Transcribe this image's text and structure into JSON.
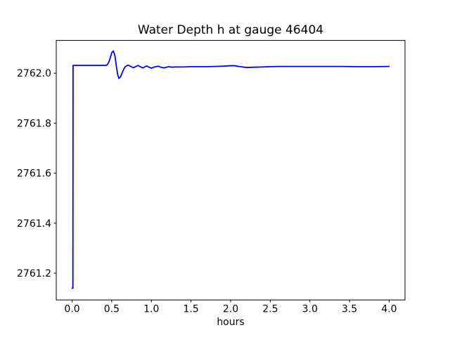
{
  "chart_data": {
    "type": "line",
    "title": "Water Depth h at gauge 46404",
    "xlabel": "hours",
    "ylabel": "",
    "xlim": [
      -0.2,
      4.2
    ],
    "ylim": [
      2761.093,
      2762.131
    ],
    "grid": false,
    "legend_position": "none",
    "x_ticks": [
      0.0,
      0.5,
      1.0,
      1.5,
      2.0,
      2.5,
      3.0,
      3.5,
      4.0
    ],
    "x_tick_labels": [
      "0.0",
      "0.5",
      "1.0",
      "1.5",
      "2.0",
      "2.5",
      "3.0",
      "3.5",
      "4.0"
    ],
    "y_ticks": [
      2761.2,
      2761.4,
      2761.6,
      2761.8,
      2762.0
    ],
    "y_tick_labels": [
      "2761.2",
      "2761.4",
      "2761.6",
      "2761.8",
      "2762.0"
    ],
    "axes_color": "#000000",
    "series": [
      {
        "name": "water-depth-h",
        "color": "#0000ff",
        "line_width": 1.8,
        "x": [
          0.0,
          0.01,
          0.012,
          0.05,
          0.1,
          0.15,
          0.2,
          0.25,
          0.3,
          0.35,
          0.4,
          0.42,
          0.44,
          0.46,
          0.48,
          0.5,
          0.52,
          0.54,
          0.56,
          0.575,
          0.59,
          0.61,
          0.63,
          0.65,
          0.67,
          0.7,
          0.72,
          0.75,
          0.775,
          0.8,
          0.835,
          0.865,
          0.895,
          0.92,
          0.94,
          0.97,
          1.0,
          1.04,
          1.085,
          1.12,
          1.16,
          1.19,
          1.22,
          1.26,
          1.3,
          1.4,
          1.5,
          1.6,
          1.7,
          1.8,
          1.9,
          1.95,
          2.0,
          2.05,
          2.1,
          2.2,
          2.3,
          2.4,
          2.5,
          2.6,
          2.8,
          3.0,
          3.2,
          3.4,
          3.6,
          3.8,
          4.0
        ],
        "y": [
          2761.14,
          2761.14,
          2762.031,
          2762.031,
          2762.031,
          2762.031,
          2762.031,
          2762.031,
          2762.031,
          2762.031,
          2762.031,
          2762.031,
          2762.033,
          2762.042,
          2762.06,
          2762.082,
          2762.089,
          2762.07,
          2762.025,
          2761.995,
          2761.979,
          2761.985,
          2762.0,
          2762.015,
          2762.026,
          2762.032,
          2762.031,
          2762.025,
          2762.022,
          2762.026,
          2762.031,
          2762.025,
          2762.021,
          2762.026,
          2762.029,
          2762.024,
          2762.02,
          2762.025,
          2762.028,
          2762.024,
          2762.021,
          2762.024,
          2762.026,
          2762.024,
          2762.025,
          2762.025,
          2762.026,
          2762.026,
          2762.026,
          2762.027,
          2762.028,
          2762.029,
          2762.03,
          2762.03,
          2762.027,
          2762.023,
          2762.024,
          2762.025,
          2762.026,
          2762.027,
          2762.027,
          2762.027,
          2762.027,
          2762.027,
          2762.026,
          2762.026,
          2762.027
        ]
      }
    ]
  }
}
